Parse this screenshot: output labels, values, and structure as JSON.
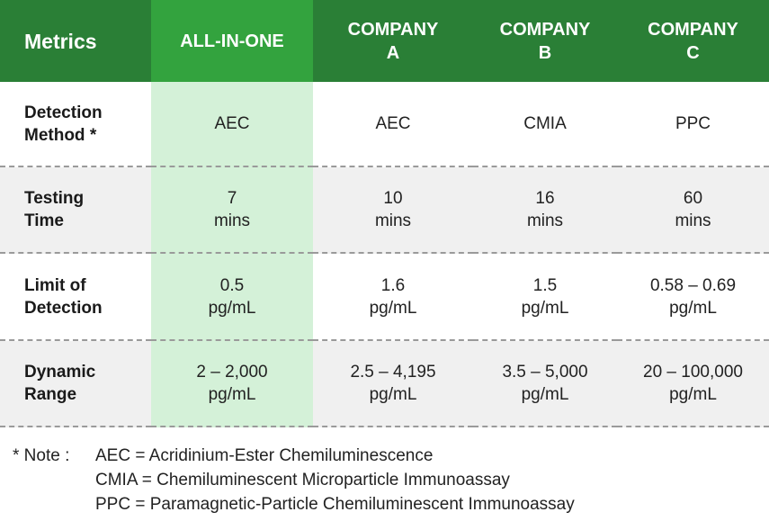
{
  "header": {
    "metrics": "Metrics",
    "col1": "ALL-IN-ONE",
    "col2": [
      "COMPANY",
      "A"
    ],
    "col3": [
      "COMPANY",
      "B"
    ],
    "col4": [
      "COMPANY",
      "C"
    ]
  },
  "rows": [
    {
      "label": [
        "Detection",
        "Method *"
      ],
      "values": [
        [
          "AEC"
        ],
        [
          "AEC"
        ],
        [
          "CMIA"
        ],
        [
          "PPC"
        ]
      ]
    },
    {
      "label": [
        "Testing",
        "Time"
      ],
      "values": [
        [
          "7",
          "mins"
        ],
        [
          "10",
          "mins"
        ],
        [
          "16",
          "mins"
        ],
        [
          "60",
          "mins"
        ]
      ]
    },
    {
      "label": [
        "Limit of",
        "Detection"
      ],
      "values": [
        [
          "0.5",
          "pg/mL"
        ],
        [
          "1.6",
          "pg/mL"
        ],
        [
          "1.5",
          "pg/mL"
        ],
        [
          "0.58 – 0.69",
          "pg/mL"
        ]
      ]
    },
    {
      "label": [
        "Dynamic",
        "Range"
      ],
      "values": [
        [
          "2 – 2,000",
          "pg/mL"
        ],
        [
          "2.5 – 4,195",
          "pg/mL"
        ],
        [
          "3.5 – 5,000",
          "pg/mL"
        ],
        [
          "20 – 100,000",
          "pg/mL"
        ]
      ]
    }
  ],
  "note": {
    "label": "* Note :",
    "lines": [
      "AEC = Acridinium-Ester Chemiluminescence",
      "CMIA = Chemiluminescent Microparticle Immunoassay",
      "PPC = Paramagnetic-Particle Chemiluminescent Immunoassay"
    ]
  },
  "colors": {
    "header_green": "#2a7f36",
    "highlight_header_green": "#33a33e",
    "highlight_column": "#d4f1d8",
    "alt_row_gray": "#f0f0f0"
  }
}
